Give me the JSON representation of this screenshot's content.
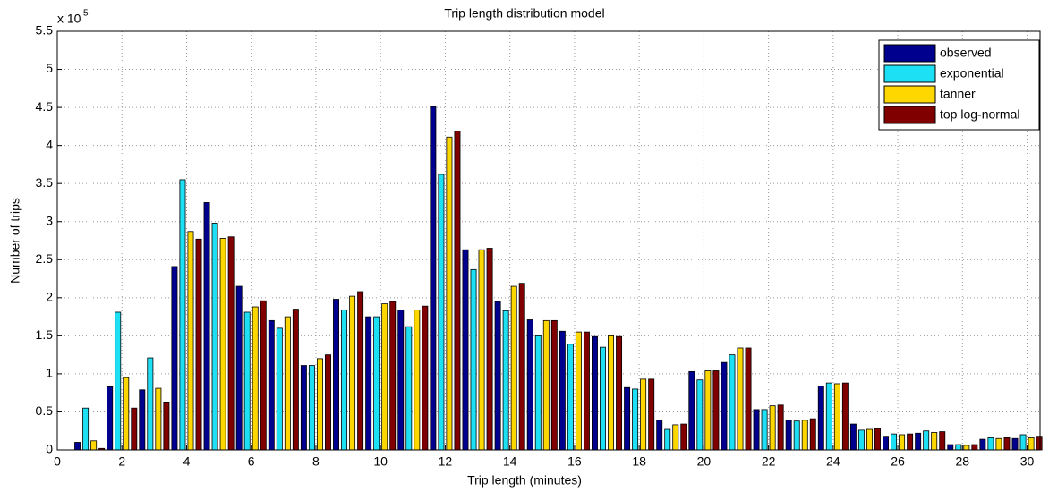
{
  "chart_data": {
    "type": "bar",
    "title": "Trip length distribution model",
    "x_label": "Trip length (minutes)",
    "y_label": "Number of trips",
    "y_scale_label": "x 10",
    "y_scale_exponent": "5",
    "x": [
      1,
      2,
      3,
      4,
      5,
      6,
      7,
      8,
      9,
      10,
      11,
      12,
      13,
      14,
      15,
      16,
      17,
      18,
      19,
      20,
      21,
      22,
      23,
      24,
      25,
      26,
      27,
      28,
      29,
      30
    ],
    "series": [
      {
        "name": "observed",
        "color": "#00008f",
        "values": [
          0.1,
          0.83,
          0.79,
          2.41,
          3.25,
          2.15,
          1.7,
          1.11,
          1.98,
          1.75,
          1.84,
          4.51,
          2.63,
          1.95,
          1.71,
          1.56,
          1.49,
          0.82,
          0.39,
          1.03,
          1.15,
          0.53,
          0.39,
          0.84,
          0.34,
          0.18,
          0.22,
          0.07,
          0.14,
          0.15
        ]
      },
      {
        "name": "exponential",
        "color": "#1ee0f5",
        "values": [
          0.55,
          1.81,
          1.21,
          3.55,
          2.98,
          1.81,
          1.6,
          1.11,
          1.84,
          1.75,
          1.62,
          3.62,
          2.37,
          1.83,
          1.5,
          1.39,
          1.35,
          0.8,
          0.27,
          0.92,
          1.25,
          0.53,
          0.38,
          0.88,
          0.26,
          0.21,
          0.25,
          0.07,
          0.16,
          0.2
        ]
      },
      {
        "name": "tanner",
        "color": "#ffd700",
        "values": [
          0.12,
          0.95,
          0.81,
          2.87,
          2.78,
          1.88,
          1.75,
          1.2,
          2.02,
          1.92,
          1.84,
          4.11,
          2.63,
          2.15,
          1.7,
          1.55,
          1.5,
          0.93,
          0.33,
          1.04,
          1.34,
          0.58,
          0.39,
          0.87,
          0.27,
          0.2,
          0.23,
          0.06,
          0.15,
          0.16
        ]
      },
      {
        "name": "top log-normal",
        "color": "#800000",
        "values": [
          0.02,
          0.55,
          0.63,
          2.77,
          2.8,
          1.96,
          1.85,
          1.25,
          2.08,
          1.95,
          1.89,
          4.19,
          2.65,
          2.19,
          1.7,
          1.55,
          1.49,
          0.93,
          0.34,
          1.04,
          1.34,
          0.59,
          0.41,
          0.88,
          0.28,
          0.21,
          0.24,
          0.07,
          0.16,
          0.18
        ]
      }
    ],
    "xlim": [
      0,
      30.4
    ],
    "xticks": [
      0,
      2,
      4,
      6,
      8,
      10,
      12,
      14,
      16,
      18,
      20,
      22,
      24,
      26,
      28,
      30
    ],
    "ylim": [
      0,
      5.5
    ],
    "yticks": [
      0,
      0.5,
      1,
      1.5,
      2,
      2.5,
      3,
      3.5,
      4,
      4.5,
      5,
      5.5
    ],
    "grid": true,
    "legend": "top-right"
  }
}
